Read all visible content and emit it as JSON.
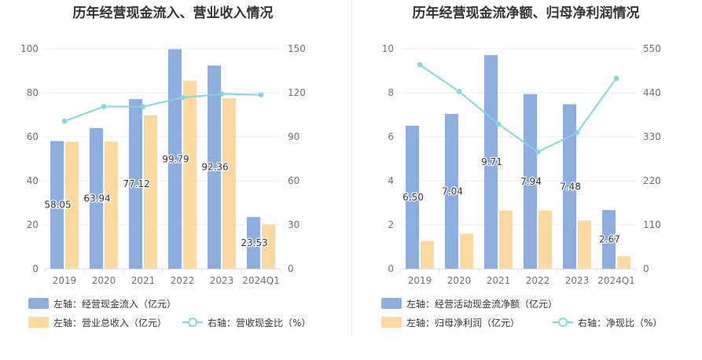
{
  "chart_data": [
    {
      "type": "bar",
      "title": "历年经营现金流入、营业收入情况",
      "categories": [
        "2019",
        "2020",
        "2021",
        "2022",
        "2023",
        "2024Q1"
      ],
      "ylim_left": [
        0,
        100
      ],
      "ylim_right": [
        0,
        150
      ],
      "left_ticks": [
        "0",
        "20",
        "40",
        "60",
        "80",
        "100"
      ],
      "right_ticks": [
        "0",
        "30",
        "60",
        "90",
        "120",
        "150"
      ],
      "grid": true,
      "legend_position": "bottom-left",
      "series": [
        {
          "name": "左轴：经营现金流入（亿元）",
          "kind": "bar",
          "axis": "left",
          "color": "#8eaede",
          "values": [
            58.05,
            63.94,
            77.12,
            99.79,
            92.36,
            23.53
          ],
          "labels": [
            "58.05",
            "63.94",
            "77.12",
            "99.79",
            "92.36",
            "23.53"
          ]
        },
        {
          "name": "左轴：营业总收入（亿元）",
          "kind": "bar",
          "axis": "left",
          "color": "#fed99f",
          "values": [
            57.7,
            57.8,
            69.8,
            85.5,
            77.5,
            20.2
          ]
        },
        {
          "name": "右轴：营收现金比（%）",
          "kind": "line",
          "axis": "right",
          "color": "#86d6de",
          "values": [
            100.6,
            110.6,
            110.5,
            116.7,
            119.2,
            118.6
          ]
        }
      ]
    },
    {
      "type": "bar",
      "title": "历年经营现金流净额、归母净利润情况",
      "categories": [
        "2019",
        "2020",
        "2021",
        "2022",
        "2023",
        "2024Q1"
      ],
      "ylim_left": [
        0,
        10
      ],
      "ylim_right": [
        0,
        550
      ],
      "left_ticks": [
        "0",
        "2",
        "4",
        "6",
        "8",
        "10"
      ],
      "right_ticks": [
        "0",
        "110",
        "220",
        "330",
        "440",
        "550"
      ],
      "grid": true,
      "legend_position": "bottom-left",
      "series": [
        {
          "name": "左轴：经营活动现金流净额（亿元）",
          "kind": "bar",
          "axis": "left",
          "color": "#8eaede",
          "values": [
            6.5,
            7.04,
            9.71,
            7.94,
            7.48,
            2.67
          ],
          "labels": [
            "6.50",
            "7.04",
            "9.71",
            "7.94",
            "7.48",
            "2.67"
          ]
        },
        {
          "name": "左轴：归母净利润（亿元）",
          "kind": "bar",
          "axis": "left",
          "color": "#fed99f",
          "values": [
            1.27,
            1.59,
            2.65,
            2.65,
            2.19,
            0.57
          ]
        },
        {
          "name": "右轴：净现比（%）",
          "kind": "line",
          "axis": "right",
          "color": "#86d6de",
          "values": [
            510,
            443,
            362,
            292,
            340,
            476
          ]
        }
      ]
    }
  ]
}
